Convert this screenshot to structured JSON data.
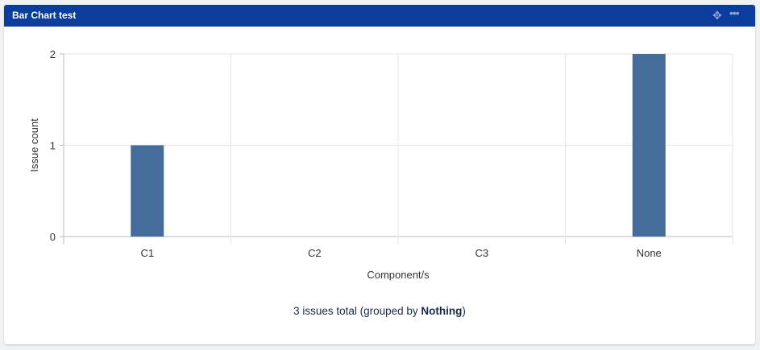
{
  "panel": {
    "title": "Bar Chart test",
    "move_icon": "move-icon",
    "more_icon": "more-icon"
  },
  "footer": {
    "prefix": "3 issues total (grouped by ",
    "group": "Nothing",
    "suffix": ")"
  },
  "chart_data": {
    "type": "bar",
    "categories": [
      "C1",
      "C2",
      "C3",
      "None"
    ],
    "values": [
      1,
      0,
      0,
      2
    ],
    "xlabel": "Component/s",
    "ylabel": "Issue count",
    "ylim": [
      0,
      2
    ],
    "yticks": [
      "0",
      "1",
      "2"
    ],
    "grid": true,
    "bar_color": "#456d9c"
  }
}
